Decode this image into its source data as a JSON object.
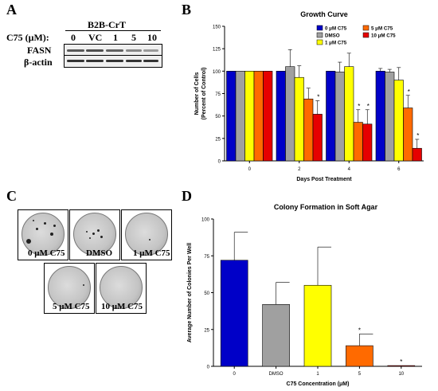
{
  "panels": {
    "a": "A",
    "b": "B",
    "c": "C",
    "d": "D"
  },
  "blot": {
    "cell_line": "B2B-CrT",
    "dose_label": "C75 (μM):",
    "lanes": [
      "0",
      "VC",
      "1",
      "5",
      "10"
    ],
    "rows": [
      "FASN",
      "β-actin"
    ]
  },
  "soft_agar_images": [
    {
      "label": "0 μM C75"
    },
    {
      "label": "DMSO"
    },
    {
      "label": "1 μM C75"
    },
    {
      "label": "5 μM C75"
    },
    {
      "label": "10 μM C75"
    }
  ],
  "chart_data": [
    {
      "type": "bar",
      "title": "Growth Curve",
      "xlabel": "Days Post Treatment",
      "ylabel": "Number of Cells\n(Percent of Control)",
      "categories": [
        "0",
        "2",
        "4",
        "6"
      ],
      "ylim": [
        0,
        150
      ],
      "yticks": [
        "0",
        "25",
        "50",
        "75",
        "100",
        "125",
        "150"
      ],
      "legend_position": "top-right",
      "series": [
        {
          "name": "0 μM C75",
          "color": "#0000c8",
          "values": [
            100,
            100,
            100,
            100
          ],
          "errors": [
            0,
            0,
            0,
            3
          ]
        },
        {
          "name": "DMSO",
          "color": "#a0a0a0",
          "values": [
            100,
            105,
            99,
            99
          ],
          "errors": [
            0,
            19,
            11,
            3
          ]
        },
        {
          "name": "1 μM C75",
          "color": "#ffff00",
          "values": [
            100,
            93,
            105,
            90
          ],
          "errors": [
            0,
            13,
            15,
            14
          ]
        },
        {
          "name": "5 μM C75",
          "color": "#ff6a00",
          "values": [
            100,
            69,
            43,
            59
          ],
          "errors": [
            0,
            12,
            14,
            14
          ]
        },
        {
          "name": "10 μM C75",
          "color": "#e60000",
          "values": [
            100,
            52,
            41,
            14
          ],
          "errors": [
            0,
            15,
            16,
            10
          ]
        }
      ],
      "significance": [
        {
          "category": "2",
          "series": "10 μM C75",
          "mark": "*"
        },
        {
          "category": "4",
          "series": "5 μM C75",
          "mark": "*"
        },
        {
          "category": "4",
          "series": "10 μM C75",
          "mark": "*"
        },
        {
          "category": "6",
          "series": "5 μM C75",
          "mark": "*"
        },
        {
          "category": "6",
          "series": "10 μM C75",
          "mark": "*"
        }
      ]
    },
    {
      "type": "bar",
      "title": "Colony Formation in Soft Agar",
      "xlabel": "C75 Concentration (μM)",
      "ylabel": "Average Number of Colonies Per  Well",
      "categories": [
        "0",
        "DMSO",
        "1",
        "5",
        "10"
      ],
      "colors": [
        "#0000c8",
        "#a0a0a0",
        "#ffff00",
        "#ff6a00",
        "#e60000"
      ],
      "values": [
        72,
        42,
        55,
        14,
        0.5
      ],
      "errors": [
        19,
        15,
        26,
        8,
        0
      ],
      "ylim": [
        0,
        100
      ],
      "yticks": [
        "0",
        "25",
        "50",
        "75",
        "100"
      ],
      "significance": [
        {
          "category": "5",
          "mark": "*"
        },
        {
          "category": "10",
          "mark": "*"
        }
      ]
    }
  ]
}
